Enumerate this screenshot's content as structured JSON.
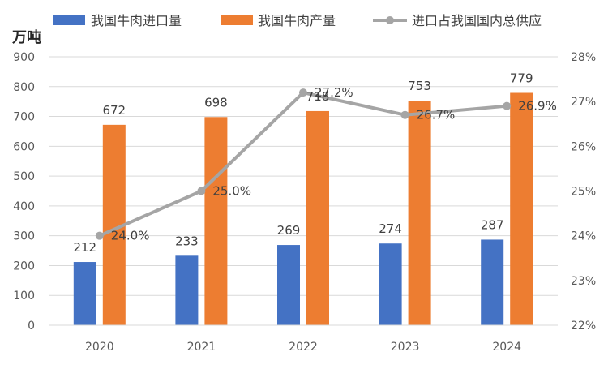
{
  "chart_data": {
    "type": "bar",
    "categories": [
      "2020",
      "2021",
      "2022",
      "2023",
      "2024"
    ],
    "series": [
      {
        "name": "我国牛肉进口量",
        "kind": "bar",
        "axis": "left",
        "color": "#4472C4",
        "values": [
          212,
          233,
          269,
          274,
          287
        ]
      },
      {
        "name": "我国牛肉产量",
        "kind": "bar",
        "axis": "left",
        "color": "#ED7D31",
        "values": [
          672,
          698,
          718,
          753,
          779
        ]
      },
      {
        "name": "进口占我国国内总供应",
        "kind": "line",
        "axis": "right",
        "color": "#A5A5A5",
        "values": [
          24.0,
          25.0,
          27.2,
          26.7,
          26.9
        ],
        "value_labels": [
          "24.0%",
          "25.0%",
          "27.2%",
          "26.7%",
          "26.9%"
        ]
      }
    ],
    "y_unit_label": "万吨",
    "ylim": [
      0,
      900
    ],
    "yticks": [
      0,
      100,
      200,
      300,
      400,
      500,
      600,
      700,
      800,
      900
    ],
    "y2lim": [
      22,
      28
    ],
    "y2ticks": [
      "22%",
      "23%",
      "24%",
      "25%",
      "26%",
      "27%",
      "28%"
    ],
    "grid": true,
    "legend_position": "top"
  }
}
